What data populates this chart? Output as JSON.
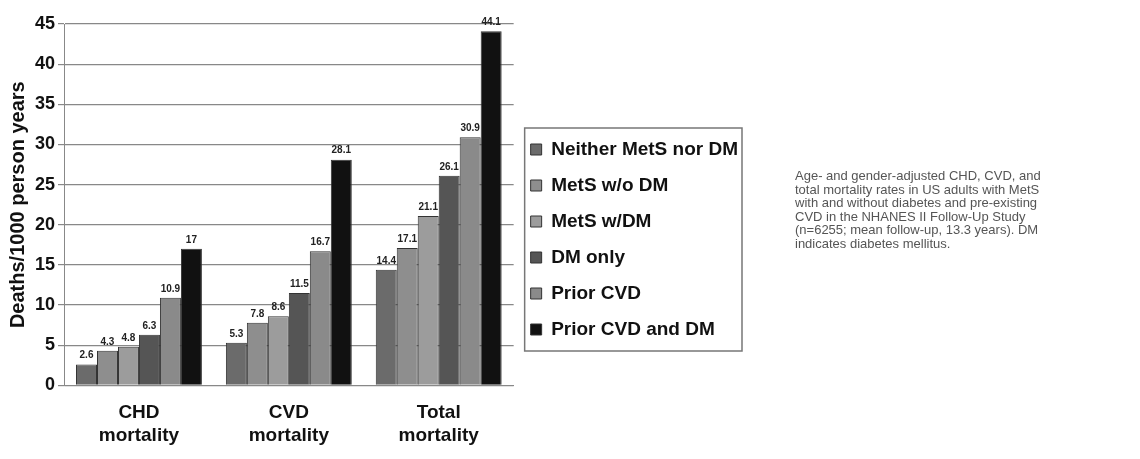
{
  "chart_data": {
    "type": "bar",
    "ylabel": "Deaths/1000 person years",
    "categories": [
      "CHD mortality",
      "CVD mortality",
      "Total mortality"
    ],
    "series": [
      {
        "name": "Neither MetS nor DM",
        "color": "#6b6b6b",
        "values": [
          2.6,
          5.3,
          14.4
        ]
      },
      {
        "name": "MetS w/o DM",
        "color": "#8e8e8e",
        "values": [
          4.3,
          7.8,
          17.1
        ]
      },
      {
        "name": "MetS w/DM",
        "color": "#9c9c9c",
        "values": [
          4.8,
          8.6,
          21.1
        ]
      },
      {
        "name": "DM only",
        "color": "#555555",
        "values": [
          6.3,
          11.5,
          26.1
        ]
      },
      {
        "name": "Prior CVD",
        "color": "#8a8a8a",
        "values": [
          10.9,
          16.7,
          30.9
        ]
      },
      {
        "name": "Prior CVD and DM",
        "color": "#111111",
        "values": [
          17,
          28.1,
          44.1
        ]
      }
    ],
    "ylim": [
      0,
      45
    ],
    "yticks": [
      0,
      5,
      10,
      15,
      20,
      25,
      30,
      35,
      40,
      45
    ],
    "grid": "y",
    "legend": "right",
    "data_labels": true,
    "annotations": [
      "Age- and gender-adjusted CHD, CVD, and total mortality rates in US adults with MetS with and without diabetes and pre-existing CVD in the NHANES II Follow-Up Study (n=6255; mean follow-up, 13.3 years). DM indicates diabetes mellitus."
    ]
  }
}
